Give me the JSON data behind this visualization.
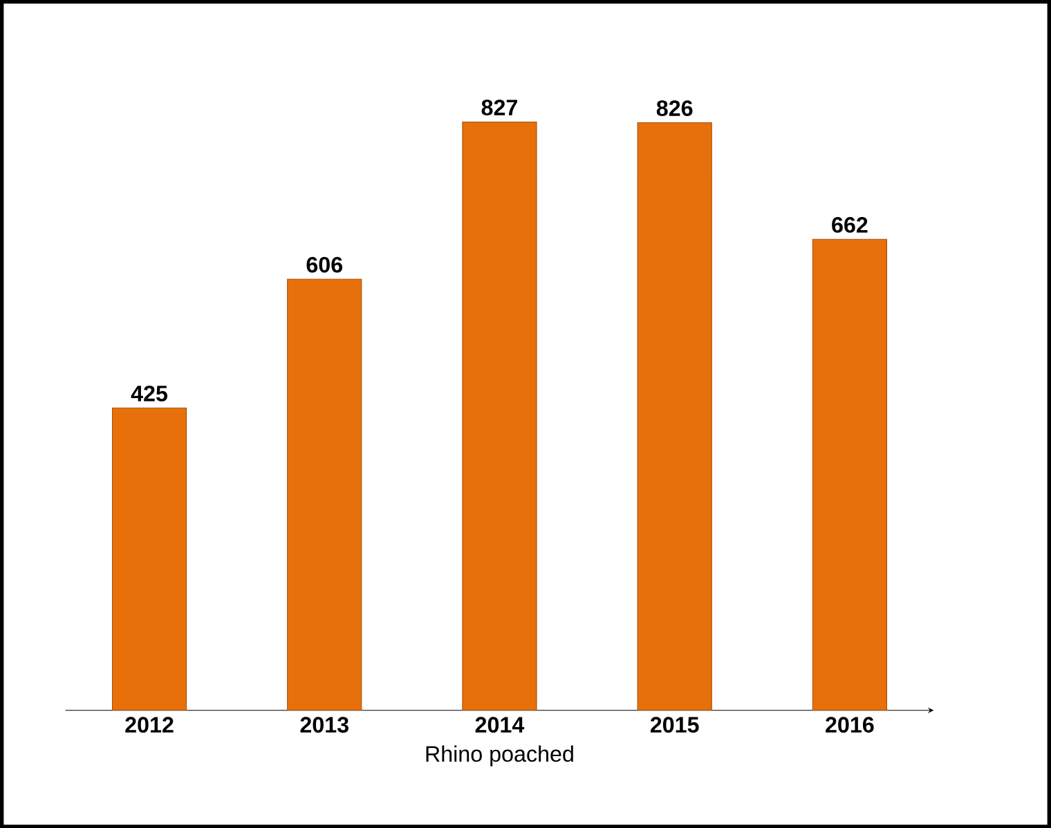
{
  "chart_data": {
    "type": "bar",
    "xlabel": "Rhino poached",
    "categories": [
      "2012",
      "2013",
      "2014",
      "2015",
      "2016"
    ],
    "values": [
      425,
      606,
      827,
      826,
      662
    ],
    "color": "#e8700a",
    "data_labels": true
  }
}
